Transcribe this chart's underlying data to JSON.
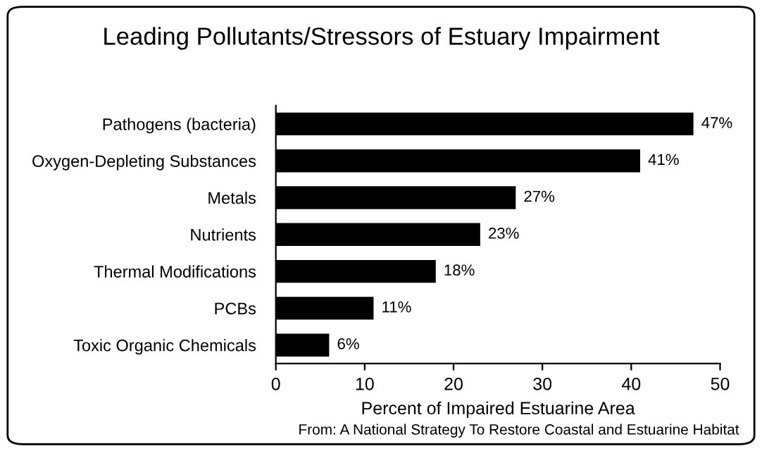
{
  "chart_data": {
    "type": "bar",
    "orientation": "horizontal",
    "title": "Leading Pollutants/Stressors of Estuary Impairment",
    "categories": [
      "Pathogens (bacteria)",
      "Oxygen-Depleting Substances",
      "Metals",
      "Nutrients",
      "Thermal Modifications",
      "PCBs",
      "Toxic Organic Chemicals"
    ],
    "values": [
      47,
      41,
      27,
      23,
      18,
      11,
      6
    ],
    "value_labels": [
      "47%",
      "41%",
      "27%",
      "23%",
      "18%",
      "11%",
      "6%"
    ],
    "color": "#000000",
    "xlim": [
      0,
      50
    ],
    "xticks": [
      0,
      10,
      20,
      30,
      40,
      50
    ],
    "xlabel": "Percent of Impaired Estuarine Area",
    "annotations": [
      "From: A National Strategy To Restore Coastal and Estuarine Habitat"
    ],
    "grid": false
  }
}
